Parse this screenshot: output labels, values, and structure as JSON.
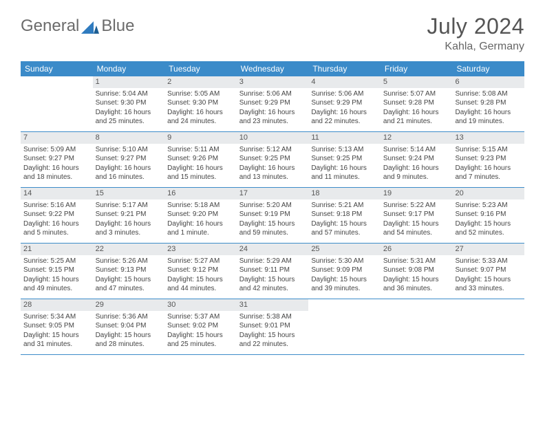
{
  "brand": {
    "word1": "General",
    "word2": "Blue"
  },
  "title": "July 2024",
  "location": "Kahla, Germany",
  "colors": {
    "header_bg": "#3b8bc9",
    "header_text": "#ffffff",
    "daynum_bg": "#e8eaec",
    "text": "#444444",
    "brand_blue": "#2f7bbf",
    "row_border": "#3b8bc9"
  },
  "day_names": [
    "Sunday",
    "Monday",
    "Tuesday",
    "Wednesday",
    "Thursday",
    "Friday",
    "Saturday"
  ],
  "first_weekday_index": 1,
  "days_in_month": 31,
  "days": {
    "1": {
      "sunrise": "5:04 AM",
      "sunset": "9:30 PM",
      "daylight": "Daylight: 16 hours and 25 minutes."
    },
    "2": {
      "sunrise": "5:05 AM",
      "sunset": "9:30 PM",
      "daylight": "Daylight: 16 hours and 24 minutes."
    },
    "3": {
      "sunrise": "5:06 AM",
      "sunset": "9:29 PM",
      "daylight": "Daylight: 16 hours and 23 minutes."
    },
    "4": {
      "sunrise": "5:06 AM",
      "sunset": "9:29 PM",
      "daylight": "Daylight: 16 hours and 22 minutes."
    },
    "5": {
      "sunrise": "5:07 AM",
      "sunset": "9:28 PM",
      "daylight": "Daylight: 16 hours and 21 minutes."
    },
    "6": {
      "sunrise": "5:08 AM",
      "sunset": "9:28 PM",
      "daylight": "Daylight: 16 hours and 19 minutes."
    },
    "7": {
      "sunrise": "5:09 AM",
      "sunset": "9:27 PM",
      "daylight": "Daylight: 16 hours and 18 minutes."
    },
    "8": {
      "sunrise": "5:10 AM",
      "sunset": "9:27 PM",
      "daylight": "Daylight: 16 hours and 16 minutes."
    },
    "9": {
      "sunrise": "5:11 AM",
      "sunset": "9:26 PM",
      "daylight": "Daylight: 16 hours and 15 minutes."
    },
    "10": {
      "sunrise": "5:12 AM",
      "sunset": "9:25 PM",
      "daylight": "Daylight: 16 hours and 13 minutes."
    },
    "11": {
      "sunrise": "5:13 AM",
      "sunset": "9:25 PM",
      "daylight": "Daylight: 16 hours and 11 minutes."
    },
    "12": {
      "sunrise": "5:14 AM",
      "sunset": "9:24 PM",
      "daylight": "Daylight: 16 hours and 9 minutes."
    },
    "13": {
      "sunrise": "5:15 AM",
      "sunset": "9:23 PM",
      "daylight": "Daylight: 16 hours and 7 minutes."
    },
    "14": {
      "sunrise": "5:16 AM",
      "sunset": "9:22 PM",
      "daylight": "Daylight: 16 hours and 5 minutes."
    },
    "15": {
      "sunrise": "5:17 AM",
      "sunset": "9:21 PM",
      "daylight": "Daylight: 16 hours and 3 minutes."
    },
    "16": {
      "sunrise": "5:18 AM",
      "sunset": "9:20 PM",
      "daylight": "Daylight: 16 hours and 1 minute."
    },
    "17": {
      "sunrise": "5:20 AM",
      "sunset": "9:19 PM",
      "daylight": "Daylight: 15 hours and 59 minutes."
    },
    "18": {
      "sunrise": "5:21 AM",
      "sunset": "9:18 PM",
      "daylight": "Daylight: 15 hours and 57 minutes."
    },
    "19": {
      "sunrise": "5:22 AM",
      "sunset": "9:17 PM",
      "daylight": "Daylight: 15 hours and 54 minutes."
    },
    "20": {
      "sunrise": "5:23 AM",
      "sunset": "9:16 PM",
      "daylight": "Daylight: 15 hours and 52 minutes."
    },
    "21": {
      "sunrise": "5:25 AM",
      "sunset": "9:15 PM",
      "daylight": "Daylight: 15 hours and 49 minutes."
    },
    "22": {
      "sunrise": "5:26 AM",
      "sunset": "9:13 PM",
      "daylight": "Daylight: 15 hours and 47 minutes."
    },
    "23": {
      "sunrise": "5:27 AM",
      "sunset": "9:12 PM",
      "daylight": "Daylight: 15 hours and 44 minutes."
    },
    "24": {
      "sunrise": "5:29 AM",
      "sunset": "9:11 PM",
      "daylight": "Daylight: 15 hours and 42 minutes."
    },
    "25": {
      "sunrise": "5:30 AM",
      "sunset": "9:09 PM",
      "daylight": "Daylight: 15 hours and 39 minutes."
    },
    "26": {
      "sunrise": "5:31 AM",
      "sunset": "9:08 PM",
      "daylight": "Daylight: 15 hours and 36 minutes."
    },
    "27": {
      "sunrise": "5:33 AM",
      "sunset": "9:07 PM",
      "daylight": "Daylight: 15 hours and 33 minutes."
    },
    "28": {
      "sunrise": "5:34 AM",
      "sunset": "9:05 PM",
      "daylight": "Daylight: 15 hours and 31 minutes."
    },
    "29": {
      "sunrise": "5:36 AM",
      "sunset": "9:04 PM",
      "daylight": "Daylight: 15 hours and 28 minutes."
    },
    "30": {
      "sunrise": "5:37 AM",
      "sunset": "9:02 PM",
      "daylight": "Daylight: 15 hours and 25 minutes."
    },
    "31": {
      "sunrise": "5:38 AM",
      "sunset": "9:01 PM",
      "daylight": "Daylight: 15 hours and 22 minutes."
    }
  },
  "labels": {
    "sunrise_prefix": "Sunrise: ",
    "sunset_prefix": "Sunset: "
  }
}
